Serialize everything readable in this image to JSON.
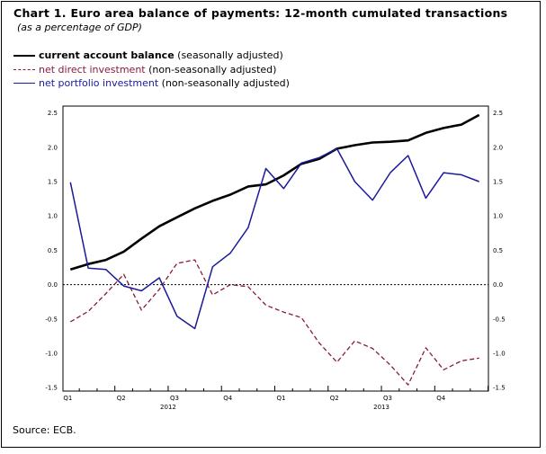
{
  "header": {
    "title": "Chart 1. Euro area balance of payments: 12-month cumulated transactions",
    "subtitle": "(as a percentage of GDP)"
  },
  "legend": [
    {
      "name": "current account balance",
      "note": "(seasonally adjusted)",
      "color": "#000000",
      "style": "solid-thick"
    },
    {
      "name": "net direct investment",
      "note": "(non-seasonally adjusted)",
      "color": "#8b1a3a",
      "style": "dashed"
    },
    {
      "name": "net portfolio investment",
      "note": "(non-seasonally adjusted)",
      "color": "#1a1a9a",
      "style": "solid"
    }
  ],
  "source": "Source: ECB.",
  "chart_data": {
    "type": "line",
    "x_frequency": "monthly",
    "quarter_labels": [
      "Q1",
      "Q2",
      "Q3",
      "Q4",
      "Q1",
      "Q2",
      "Q3",
      "Q4"
    ],
    "year_labels": [
      "2012",
      "2013"
    ],
    "ylim": [
      -1.55,
      2.6
    ],
    "y_ticks": [
      "2.5",
      "2.0",
      "1.5",
      "1.0",
      "0.5",
      "0.0",
      "-0.5",
      "-1.0",
      "-1.5"
    ],
    "y_tick_values": [
      2.5,
      2.0,
      1.5,
      1.0,
      0.5,
      0.0,
      -0.5,
      -1.0,
      -1.5
    ],
    "zero_line": "dotted",
    "series": [
      {
        "name": "current account balance",
        "color": "#000000",
        "values": [
          0.22,
          0.3,
          0.36,
          0.48,
          0.67,
          0.85,
          0.98,
          1.11,
          1.22,
          1.31,
          1.43,
          1.46,
          1.59,
          1.76,
          1.83,
          1.98,
          2.03,
          2.07,
          2.08,
          2.1,
          2.21,
          2.28,
          2.33,
          2.47
        ]
      },
      {
        "name": "net direct investment",
        "color": "#8b1a3a",
        "values": [
          -0.54,
          -0.39,
          -0.13,
          0.15,
          -0.37,
          -0.07,
          0.31,
          0.36,
          -0.15,
          0.0,
          -0.03,
          -0.3,
          -0.4,
          -0.48,
          -0.85,
          -1.13,
          -0.82,
          -0.93,
          -1.17,
          -1.46,
          -0.92,
          -1.24,
          -1.11,
          -1.07
        ]
      },
      {
        "name": "net portfolio investment",
        "color": "#1a1a9a",
        "values": [
          1.49,
          0.24,
          0.22,
          -0.02,
          -0.09,
          0.1,
          -0.46,
          -0.64,
          0.26,
          0.46,
          0.83,
          1.69,
          1.4,
          1.77,
          1.85,
          1.98,
          1.5,
          1.23,
          1.63,
          1.88,
          1.26,
          1.63,
          1.6,
          1.5
        ]
      }
    ]
  }
}
